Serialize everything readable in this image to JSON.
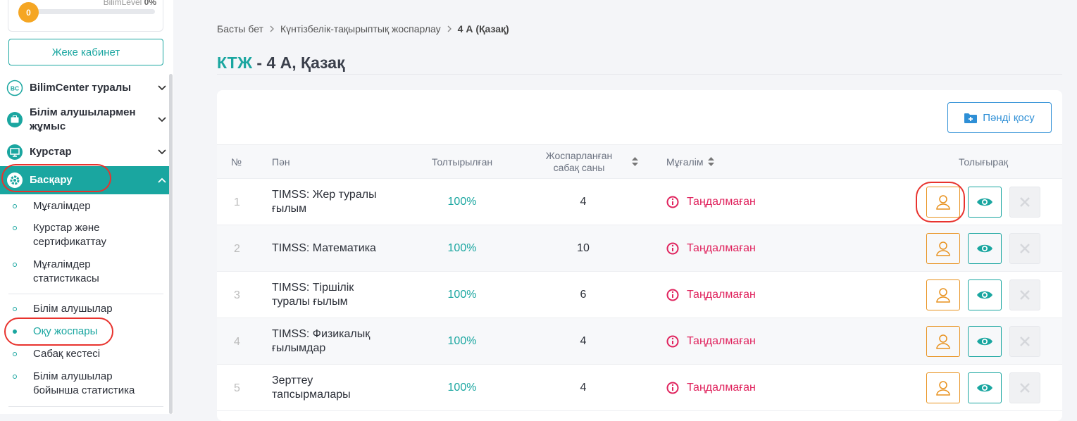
{
  "profile": {
    "level": "0",
    "label": "BilimLevel",
    "percent": "0%"
  },
  "cabinet_button": "Жеке кабинет",
  "menu": [
    {
      "icon": "BC",
      "label": "BilimCenter туралы"
    },
    {
      "label": "Білім алушылармен жұмыс"
    },
    {
      "label": "Курстар"
    },
    {
      "label": "Басқару"
    }
  ],
  "submenu": [
    "Мұғалімдер",
    "Курстар және сертификаттау",
    "Мұғалімдер статистикасы",
    "Білім алушылар",
    "Оқу жоспары",
    "Сабақ кестесі",
    "Білім алушылар бойынша статистика"
  ],
  "breadcrumb": [
    "Басты бет",
    "Күнтізбелік-тақырыптық жоспарлау",
    "4 А (Қазақ)"
  ],
  "title": {
    "prefix": "КТЖ",
    "rest": " - 4 А, Қазақ"
  },
  "add_button": "Пәнді қосу",
  "table": {
    "headers": [
      "№",
      "Пән",
      "Толтырылған",
      "Жоспарланған сабақ саны",
      "Мұғалім",
      "Толығырақ"
    ],
    "rows": [
      [
        "1",
        "TIMSS: Жер туралы ғылым",
        "100%",
        "4",
        "Таңдалмаған"
      ],
      [
        "2",
        "TIMSS: Математика",
        "100%",
        "10",
        "Таңдалмаған"
      ],
      [
        "3",
        "TIMSS: Тіршілік туралы ғылым",
        "100%",
        "6",
        "Таңдалмаған"
      ],
      [
        "4",
        "TIMSS: Физикалық ғылымдар",
        "100%",
        "4",
        "Таңдалмаған"
      ],
      [
        "5",
        "Зерттеу тапсырмалары",
        "100%",
        "4",
        "Таңдалмаған"
      ]
    ]
  }
}
